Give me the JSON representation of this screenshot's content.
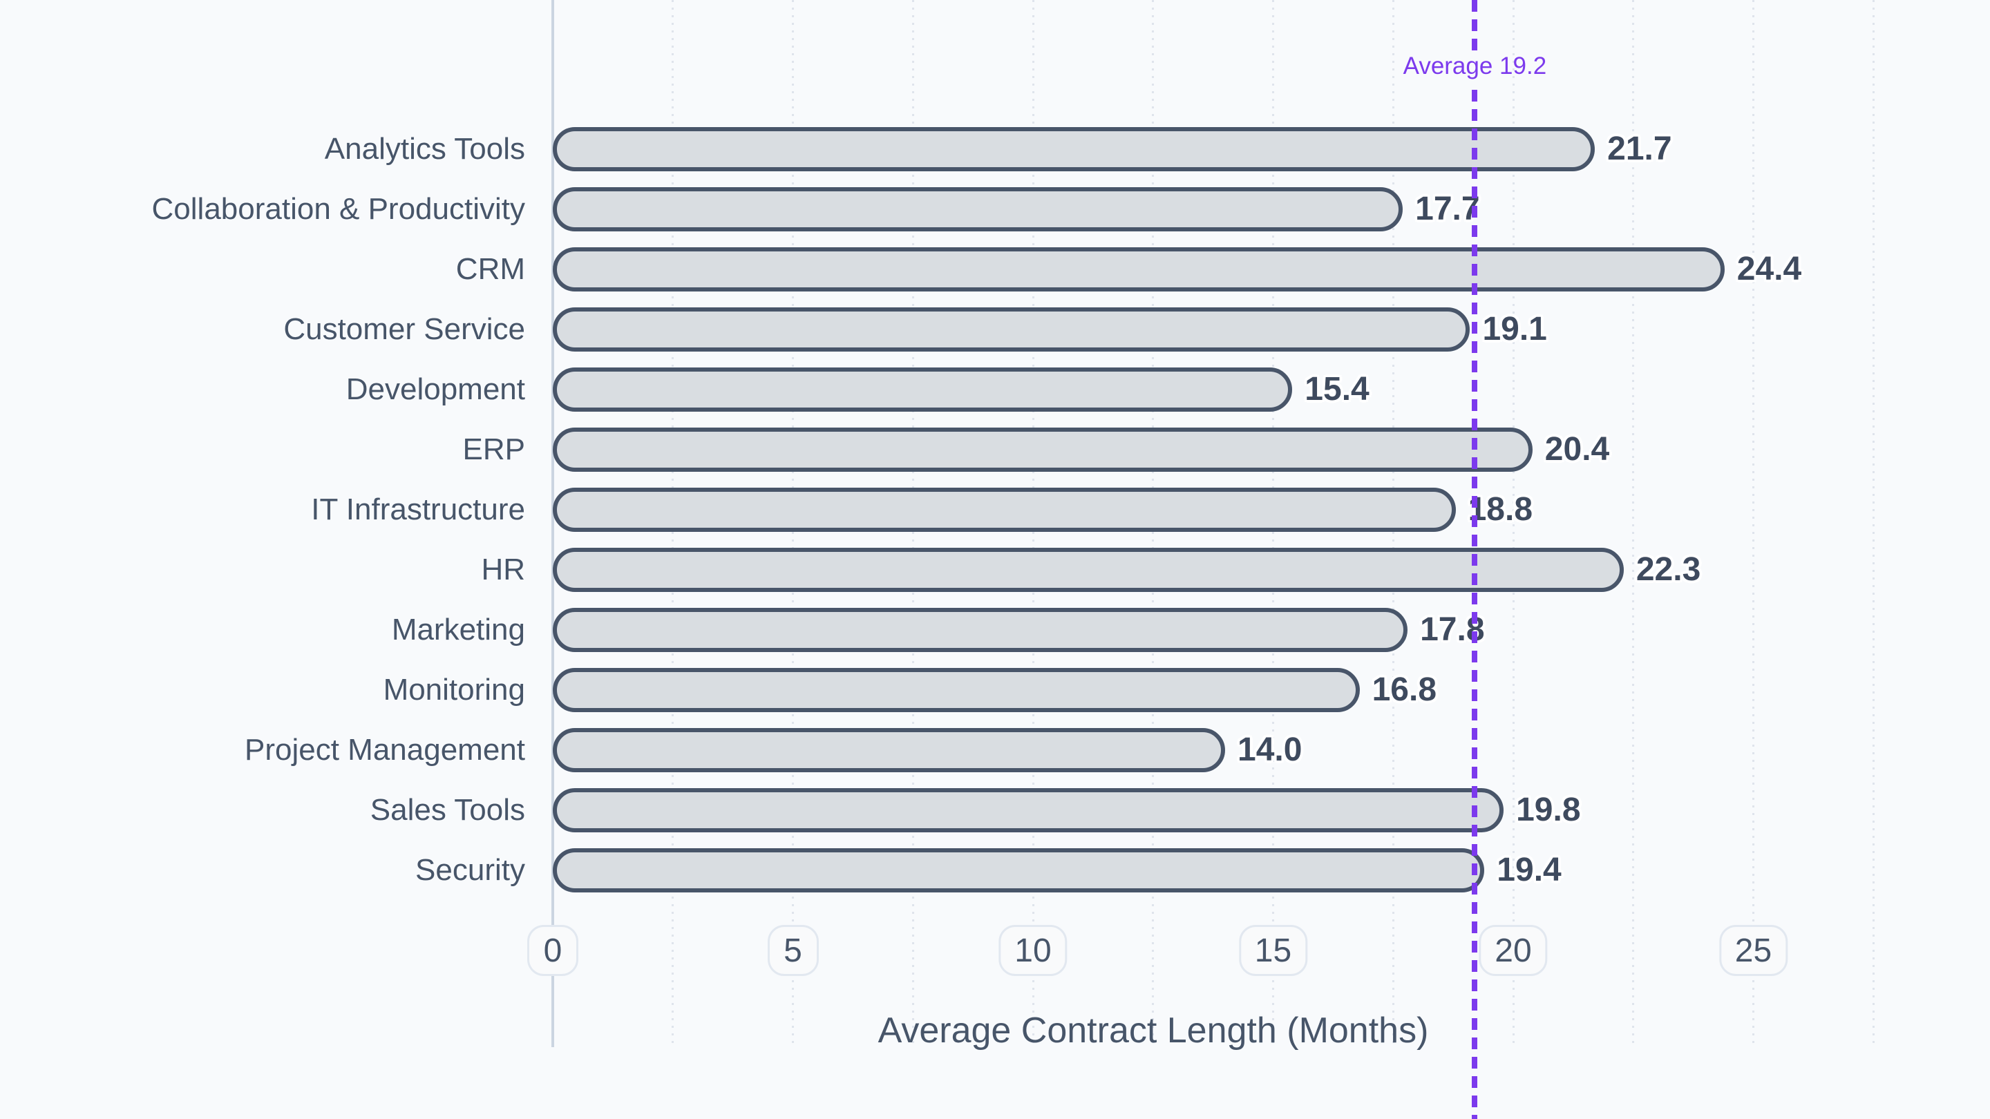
{
  "chart_data": {
    "type": "bar",
    "orientation": "horizontal",
    "title": "",
    "xlabel": "Average Contract Length (Months)",
    "ylabel": "",
    "categories": [
      "Analytics Tools",
      "Collaboration & Productivity",
      "CRM",
      "Customer Service",
      "Development",
      "ERP",
      "IT Infrastructure",
      "HR",
      "Marketing",
      "Monitoring",
      "Project Management",
      "Sales Tools",
      "Security"
    ],
    "values": [
      21.7,
      17.7,
      24.4,
      19.1,
      15.4,
      20.4,
      18.8,
      22.3,
      17.8,
      16.8,
      14.0,
      19.8,
      19.4
    ],
    "value_labels": [
      "21.7",
      "17.7",
      "24.4",
      "19.1",
      "15.4",
      "20.4",
      "18.8",
      "22.3",
      "17.8",
      "16.8",
      "14.0",
      "19.8",
      "19.4"
    ],
    "xlim": [
      0,
      25
    ],
    "xticks": [
      0,
      5,
      10,
      15,
      20,
      25
    ],
    "minor_gridline_step": 2.5,
    "grid": "dotted vertical minor gridlines",
    "legend": null,
    "average_line": {
      "value": 19.2,
      "label": "Average 19.2"
    }
  },
  "colors": {
    "background": "#f8fafc",
    "bar_fill": "#d9dde1",
    "bar_border": "#485569",
    "value_text": "#3e4a5e",
    "category_text": "#475569",
    "axis_line": "#cbd5e1",
    "gridline": "#dfe4ec",
    "tick_pill_border": "#e2e8f0",
    "tick_pill_bg": "#f9fafb",
    "average_accent": "#7c3aed",
    "label_halo": "#ffffff"
  }
}
